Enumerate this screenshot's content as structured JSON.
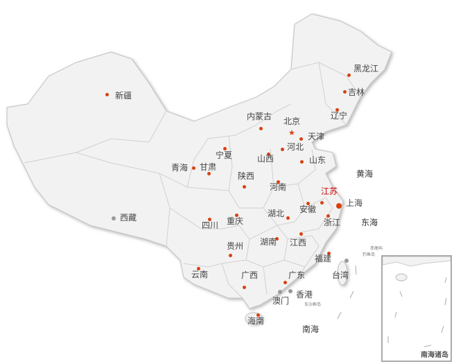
{
  "provinces": [
    {
      "name": "新疆",
      "capital_color": "#d9400f"
    },
    {
      "name": "西藏"
    },
    {
      "name": "青海"
    },
    {
      "name": "甘肃"
    },
    {
      "name": "宁夏"
    },
    {
      "name": "内蒙古"
    },
    {
      "name": "北京"
    },
    {
      "name": "天津"
    },
    {
      "name": "河北"
    },
    {
      "name": "山西"
    },
    {
      "name": "山东"
    },
    {
      "name": "陕西"
    },
    {
      "name": "河南"
    },
    {
      "name": "江苏"
    },
    {
      "name": "上海"
    },
    {
      "name": "安徽"
    },
    {
      "name": "浙江"
    },
    {
      "name": "湖北"
    },
    {
      "name": "四川"
    },
    {
      "name": "重庆"
    },
    {
      "name": "贵州"
    },
    {
      "name": "湖南"
    },
    {
      "name": "江西"
    },
    {
      "name": "福建"
    },
    {
      "name": "云南"
    },
    {
      "name": "广西"
    },
    {
      "name": "广东"
    },
    {
      "name": "香港"
    },
    {
      "name": "澳门"
    },
    {
      "name": "台湾"
    },
    {
      "name": "海南"
    },
    {
      "name": "黑龙江"
    },
    {
      "name": "吉林"
    },
    {
      "name": "辽宁"
    }
  ],
  "highlighted": "江苏",
  "seas": [
    "黄海",
    "东海",
    "南海"
  ],
  "islands": [
    "赤尾屿",
    "钓鱼岛",
    "东沙群岛"
  ],
  "inset_title": "南海诸岛",
  "colors": {
    "marker": "#d9400f",
    "highlight": "#cc0000",
    "land": "#f2f2f2",
    "border": "#c8c8c8"
  }
}
